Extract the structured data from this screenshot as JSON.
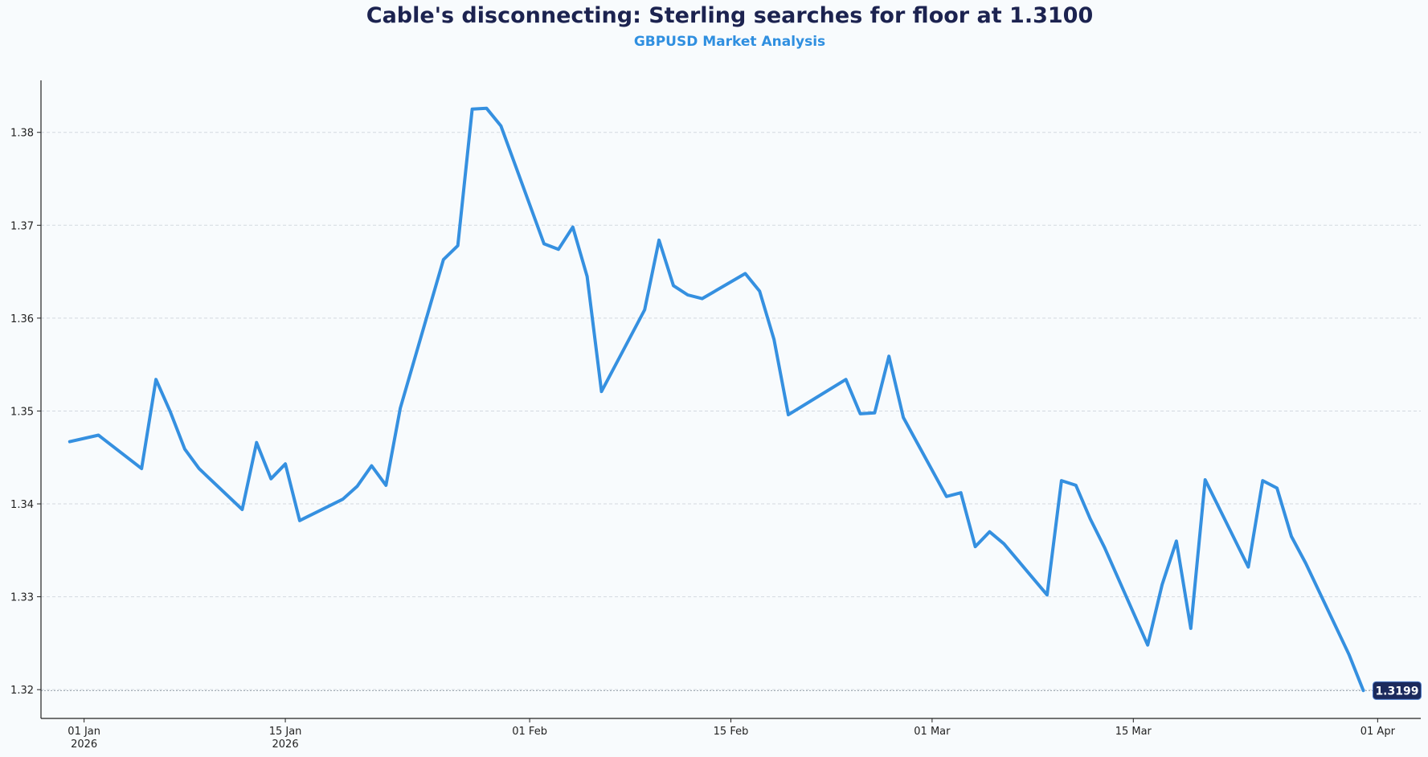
{
  "chart_data": {
    "type": "line",
    "title": "Cable's disconnecting: Sterling searches for floor at 1.3100",
    "subtitle": "GBPUSD Market Analysis",
    "xlabel": "",
    "ylabel": "",
    "x_range": [
      "2025-12-29",
      "2026-04-04"
    ],
    "ylim": [
      1.3169,
      1.3856
    ],
    "yticks": [
      1.32,
      1.33,
      1.34,
      1.35,
      1.36,
      1.37,
      1.38
    ],
    "ytick_labels": [
      "1.32",
      "1.33",
      "1.34",
      "1.35",
      "1.36",
      "1.37",
      "1.38"
    ],
    "xticks": [
      {
        "date": "2026-01-01",
        "line1": "01 Jan",
        "line2": "2026"
      },
      {
        "date": "2026-01-15",
        "line1": "15 Jan",
        "line2": "2026"
      },
      {
        "date": "2026-02-01",
        "line1": "01 Feb",
        "line2": ""
      },
      {
        "date": "2026-02-15",
        "line1": "15 Feb",
        "line2": ""
      },
      {
        "date": "2026-03-01",
        "line1": "01 Mar",
        "line2": ""
      },
      {
        "date": "2026-03-15",
        "line1": "15 Mar",
        "line2": ""
      },
      {
        "date": "2026-04-01",
        "line1": "01 Apr",
        "line2": ""
      }
    ],
    "grid": true,
    "colors": {
      "line": "#3590e0",
      "title": "#1c2350",
      "subtitle": "#2f8fe0",
      "badge": "#1c2a5c",
      "grid": "#d3d9e0",
      "axis": "#222222"
    },
    "series": [
      {
        "name": "GBPUSD",
        "x": [
          "2025-12-31",
          "2026-01-02",
          "2026-01-05",
          "2026-01-06",
          "2026-01-07",
          "2026-01-08",
          "2026-01-09",
          "2026-01-12",
          "2026-01-13",
          "2026-01-14",
          "2026-01-15",
          "2026-01-16",
          "2026-01-19",
          "2026-01-20",
          "2026-01-21",
          "2026-01-22",
          "2026-01-23",
          "2026-01-26",
          "2026-01-27",
          "2026-01-28",
          "2026-01-29",
          "2026-01-30",
          "2026-02-02",
          "2026-02-03",
          "2026-02-04",
          "2026-02-05",
          "2026-02-06",
          "2026-02-09",
          "2026-02-10",
          "2026-02-11",
          "2026-02-12",
          "2026-02-13",
          "2026-02-16",
          "2026-02-17",
          "2026-02-18",
          "2026-02-19",
          "2026-02-23",
          "2026-02-24",
          "2026-02-25",
          "2026-02-26",
          "2026-02-27",
          "2026-03-02",
          "2026-03-03",
          "2026-03-04",
          "2026-03-05",
          "2026-03-06",
          "2026-03-09",
          "2026-03-10",
          "2026-03-11",
          "2026-03-12",
          "2026-03-13",
          "2026-03-16",
          "2026-03-17",
          "2026-03-18",
          "2026-03-19",
          "2026-03-20",
          "2026-03-23",
          "2026-03-24",
          "2026-03-25",
          "2026-03-26",
          "2026-03-27",
          "2026-03-30",
          "2026-03-31"
        ],
        "values": [
          1.3467,
          1.3474,
          1.3438,
          1.3534,
          1.3499,
          1.3459,
          1.3438,
          1.3394,
          1.3466,
          1.3427,
          1.3443,
          1.3382,
          1.3405,
          1.3419,
          1.3441,
          1.342,
          1.3503,
          1.3663,
          1.3678,
          1.3825,
          1.3826,
          1.3807,
          1.368,
          1.3674,
          1.3698,
          1.3645,
          1.3521,
          1.3609,
          1.3684,
          1.3635,
          1.3625,
          1.3621,
          1.3648,
          1.3629,
          1.3577,
          1.3496,
          1.3534,
          1.3497,
          1.3498,
          1.3559,
          1.3493,
          1.3408,
          1.3412,
          1.3354,
          1.337,
          1.3357,
          1.3302,
          1.3425,
          1.342,
          1.3384,
          1.3353,
          1.3248,
          1.3313,
          1.336,
          1.3266,
          1.3426,
          1.3332,
          1.3425,
          1.3417,
          1.3365,
          1.3336,
          1.3238,
          1.3199
        ]
      }
    ],
    "last_value_label": "1.3199"
  }
}
